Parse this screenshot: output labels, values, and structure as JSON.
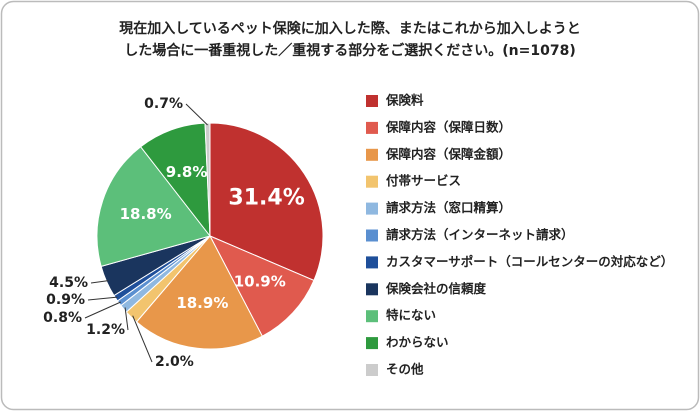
{
  "chart_data": {
    "type": "pie",
    "title": [
      "現在加入しているペット保険に加入した際、またはこれから加入しようと",
      "した場合に一番重視した／重視する部分をご選択ください。(n=1078)"
    ],
    "categories": [
      "保険料",
      "保障内容（保障日数）",
      "保障内容（保障金額）",
      "付帯サービス",
      "請求方法（窓口精算）",
      "請求方法（インターネット請求）",
      "カスタマーサポート（コールセンターの対応など）",
      "保険会社の信頼度",
      "特にない",
      "わからない",
      "その他"
    ],
    "values": [
      31.4,
      10.9,
      18.9,
      2.0,
      1.2,
      0.8,
      0.9,
      4.5,
      18.8,
      9.8,
      0.7
    ],
    "value_labels": [
      "31.4%",
      "10.9%",
      "18.9%",
      "2.0%",
      "1.2%",
      "0.8%",
      "0.9%",
      "4.5%",
      "18.8%",
      "9.8%",
      "0.7%"
    ],
    "colors": [
      "#c0312f",
      "#e05a4e",
      "#e8974a",
      "#f2c46e",
      "#8fb8e0",
      "#5a8fd0",
      "#1f4f9a",
      "#1a355e",
      "#5cbf7a",
      "#2e9a3e",
      "#cccccc"
    ],
    "legend": "right"
  }
}
